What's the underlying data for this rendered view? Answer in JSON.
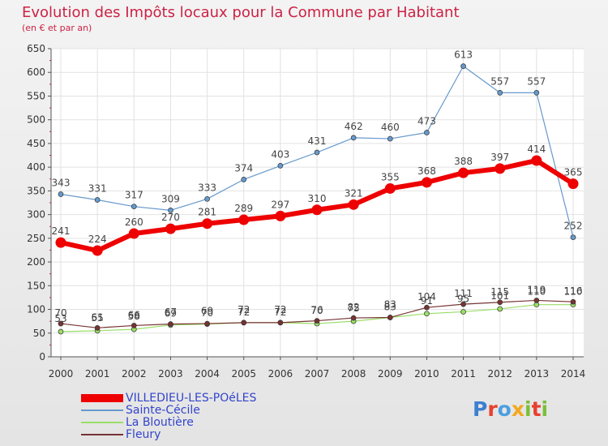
{
  "title": "Evolution des Impôts locaux pour la Commune par Habitant",
  "subtitle": "(en € et par an)",
  "logo": {
    "letters": [
      {
        "ch": "P",
        "color": "#3d7fd0"
      },
      {
        "ch": "r",
        "color": "#e8402f"
      },
      {
        "ch": "o",
        "color": "#4a9fe0"
      },
      {
        "ch": "x",
        "color": "#f2a81f"
      },
      {
        "ch": "i",
        "color": "#7abf3a"
      },
      {
        "ch": "t",
        "color": "#e8402f"
      },
      {
        "ch": "i",
        "color": "#7abf3a"
      }
    ]
  },
  "chart_data": {
    "type": "line",
    "x": [
      2000,
      2001,
      2002,
      2003,
      2004,
      2005,
      2006,
      2007,
      2008,
      2009,
      2010,
      2011,
      2012,
      2013,
      2014
    ],
    "ylim": [
      0,
      650
    ],
    "yticks": [
      0,
      50,
      100,
      150,
      200,
      250,
      300,
      350,
      400,
      450,
      500,
      550,
      600,
      650
    ],
    "grid": true,
    "legend_position": "bottom-left",
    "series": [
      {
        "name": "VILLEDIEU-LES-POéLES",
        "color": "#ee0000",
        "values": [
          241,
          224,
          260,
          270,
          281,
          289,
          297,
          310,
          321,
          355,
          368,
          388,
          397,
          414,
          365
        ]
      },
      {
        "name": "Sainte-Cécile",
        "color": "#6699cc",
        "values": [
          343,
          331,
          317,
          309,
          333,
          374,
          403,
          431,
          462,
          460,
          473,
          613,
          557,
          557,
          252
        ]
      },
      {
        "name": "La Bloutière",
        "color": "#99dd66",
        "values": [
          53,
          55,
          58,
          67,
          69,
          72,
          72,
          70,
          75,
          83,
          91,
          95,
          101,
          110,
          110
        ]
      },
      {
        "name": "Fleury",
        "color": "#773333",
        "values": [
          70,
          61,
          66,
          69,
          70,
          72,
          72,
          76,
          82,
          83,
          104,
          111,
          115,
          119,
          116
        ]
      }
    ]
  }
}
